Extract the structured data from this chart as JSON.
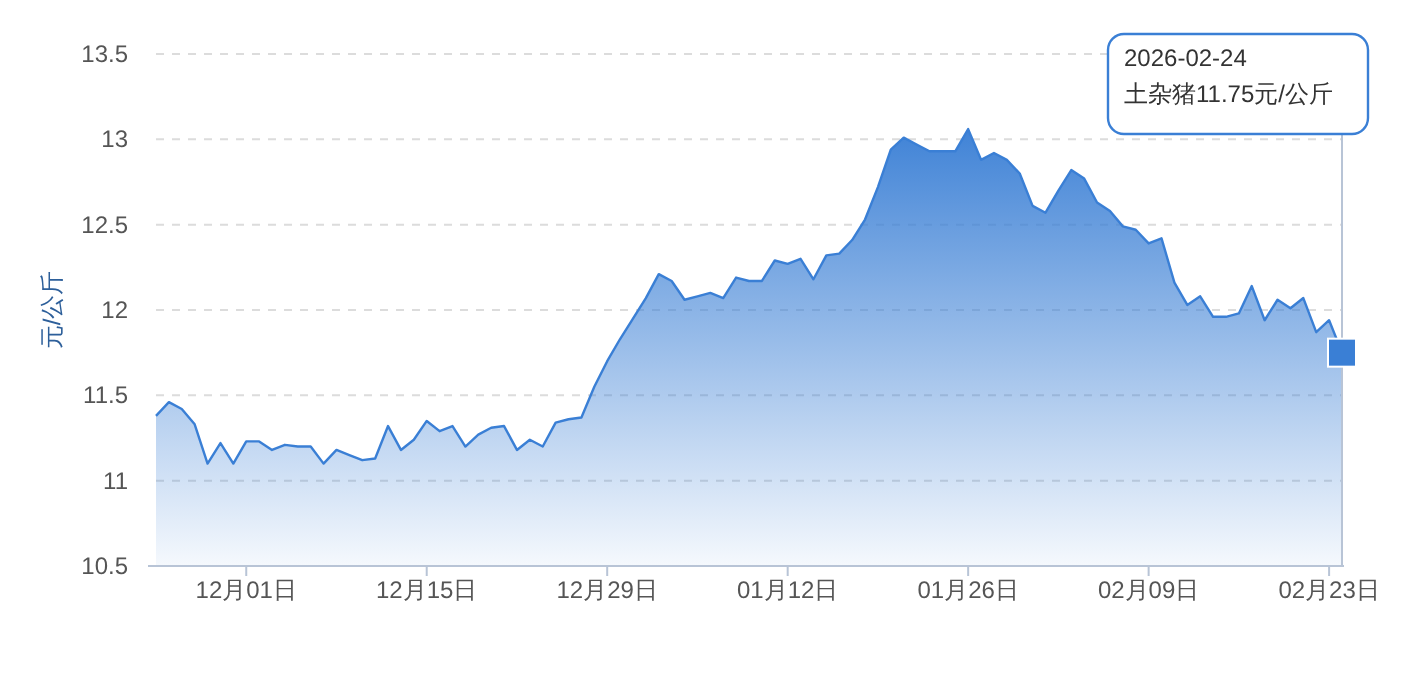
{
  "chart_data": {
    "type": "area",
    "ylabel": "元/公斤",
    "x": [
      "2025-11-24",
      "2025-11-25",
      "2025-11-26",
      "2025-11-27",
      "2025-11-28",
      "2025-11-29",
      "2025-11-30",
      "2025-12-01",
      "2025-12-02",
      "2025-12-03",
      "2025-12-04",
      "2025-12-05",
      "2025-12-06",
      "2025-12-07",
      "2025-12-08",
      "2025-12-09",
      "2025-12-10",
      "2025-12-11",
      "2025-12-12",
      "2025-12-13",
      "2025-12-14",
      "2025-12-15",
      "2025-12-16",
      "2025-12-17",
      "2025-12-18",
      "2025-12-19",
      "2025-12-20",
      "2025-12-21",
      "2025-12-22",
      "2025-12-23",
      "2025-12-24",
      "2025-12-25",
      "2025-12-26",
      "2025-12-27",
      "2025-12-28",
      "2025-12-29",
      "2025-12-30",
      "2025-12-31",
      "2026-01-01",
      "2026-01-02",
      "2026-01-03",
      "2026-01-04",
      "2026-01-05",
      "2026-01-06",
      "2026-01-07",
      "2026-01-08",
      "2026-01-09",
      "2026-01-10",
      "2026-01-11",
      "2026-01-12",
      "2026-01-13",
      "2026-01-14",
      "2026-01-15",
      "2026-01-16",
      "2026-01-17",
      "2026-01-18",
      "2026-01-19",
      "2026-01-20",
      "2026-01-21",
      "2026-01-22",
      "2026-01-23",
      "2026-01-24",
      "2026-01-25",
      "2026-01-26",
      "2026-01-27",
      "2026-01-28",
      "2026-01-29",
      "2026-01-30",
      "2026-01-31",
      "2026-02-01",
      "2026-02-02",
      "2026-02-03",
      "2026-02-04",
      "2026-02-05",
      "2026-02-06",
      "2026-02-07",
      "2026-02-08",
      "2026-02-09",
      "2026-02-10",
      "2026-02-11",
      "2026-02-12",
      "2026-02-13",
      "2026-02-14",
      "2026-02-15",
      "2026-02-16",
      "2026-02-17",
      "2026-02-18",
      "2026-02-19",
      "2026-02-20",
      "2026-02-21",
      "2026-02-22",
      "2026-02-23",
      "2026-02-24"
    ],
    "series": [
      {
        "color": "#3a7fd5",
        "values": [
          11.38,
          11.46,
          11.42,
          11.33,
          11.1,
          11.22,
          11.1,
          11.23,
          11.23,
          11.18,
          11.21,
          11.2,
          11.2,
          11.1,
          11.18,
          11.15,
          11.12,
          11.13,
          11.32,
          11.18,
          11.24,
          11.35,
          11.29,
          11.32,
          11.2,
          11.27,
          11.31,
          11.32,
          11.18,
          11.24,
          11.2,
          11.34,
          11.36,
          11.37,
          11.55,
          11.7,
          11.83,
          11.95,
          12.07,
          12.21,
          12.17,
          12.06,
          12.08,
          12.1,
          12.07,
          12.19,
          12.17,
          12.17,
          12.29,
          12.27,
          12.3,
          12.18,
          12.32,
          12.33,
          12.41,
          12.53,
          12.72,
          12.94,
          13.01,
          12.97,
          12.93,
          12.93,
          12.93,
          13.06,
          12.88,
          12.92,
          12.88,
          12.8,
          12.61,
          12.57,
          12.7,
          12.82,
          12.77,
          12.63,
          12.58,
          12.49,
          12.47,
          12.39,
          12.42,
          12.16,
          12.03,
          12.08,
          11.96,
          11.96,
          11.98,
          12.14,
          11.94,
          12.06,
          12.01,
          12.07,
          11.87,
          11.94,
          11.75
        ]
      }
    ],
    "xlim": [
      "2025-11-24",
      "2026-02-24"
    ],
    "xticks": [
      {
        "value": "2025-12-01",
        "label": "12月01日"
      },
      {
        "value": "2025-12-15",
        "label": "12月15日"
      },
      {
        "value": "2025-12-29",
        "label": "12月29日"
      },
      {
        "value": "2026-01-12",
        "label": "01月12日"
      },
      {
        "value": "2026-01-26",
        "label": "01月26日"
      },
      {
        "value": "2026-02-09",
        "label": "02月09日"
      },
      {
        "value": "2026-02-23",
        "label": "02月23日"
      }
    ],
    "ylim": [
      10.5,
      13.5
    ],
    "yticks": [
      10.5,
      11,
      11.5,
      12,
      12.5,
      13,
      13.5
    ],
    "grid": "y",
    "annotations": [
      "2026-02-24\n土杂猪11.75元/公斤"
    ]
  }
}
